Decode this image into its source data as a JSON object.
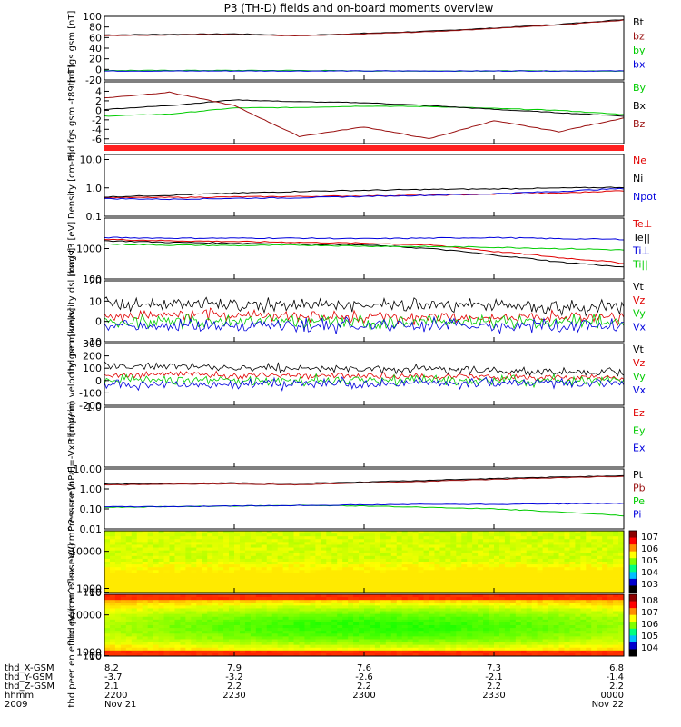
{
  "title": "P3 (TH-D) fields and on-board moments overview",
  "time": {
    "start": "2009-11-21 22:00",
    "end": "2009-11-22 00:00",
    "ticks": [
      "2200",
      "2230",
      "2300",
      "2330",
      "0000"
    ],
    "date_left": "Nov 21",
    "date_right": "Nov 22",
    "year": "2009"
  },
  "ephemeris": {
    "labels": [
      "thd_X-GSM",
      "thd_Y-GSM",
      "thd_Z-GSM",
      "hhmm",
      "2009"
    ],
    "rows": [
      [
        "8.2",
        "7.9",
        "7.6",
        "7.3",
        "6.8"
      ],
      [
        "-3.7",
        "-3.2",
        "-2.6",
        "-2.1",
        "-1.4"
      ],
      [
        "2.1",
        "2.2",
        "2.2",
        "2.2",
        "2.2"
      ]
    ]
  },
  "colors": {
    "black": "#000000",
    "red": "#e00000",
    "green": "#00cc00",
    "blue": "#0000dd",
    "darkred": "#9a1010",
    "flag": "#ff2020"
  },
  "chart_data": [
    {
      "type": "line",
      "id": "fgs",
      "ylabel": "thd fgs gsm [nT]",
      "ylim": [
        -20,
        100
      ],
      "yticks": [
        "100",
        "80",
        "60",
        "40",
        "20",
        "0",
        "-20"
      ],
      "series": [
        {
          "name": "Bt",
          "color": "#000000",
          "values": [
            65,
            66,
            67,
            64,
            68,
            72,
            78,
            85,
            94
          ]
        },
        {
          "name": "bz",
          "color": "#9a1010",
          "values": [
            64,
            65,
            66,
            63,
            67,
            71,
            77,
            84,
            93
          ]
        },
        {
          "name": "by",
          "color": "#00cc00",
          "values": [
            -2,
            -2,
            -2,
            -2,
            -3,
            -3,
            -3,
            -3,
            -3
          ]
        },
        {
          "name": "bx",
          "color": "#0000dd",
          "values": [
            -3,
            -3,
            -3,
            -3,
            -3,
            -3,
            -3,
            -3,
            -3
          ]
        }
      ]
    },
    {
      "type": "line",
      "id": "fgs_dsl",
      "ylabel": "thd fgs gsm -t89 [nT]",
      "ylim": [
        -7,
        6
      ],
      "yticks": [
        "4",
        "2",
        "0",
        "-2",
        "-4",
        "-6"
      ],
      "series": [
        {
          "name": "By",
          "color": "#00cc00",
          "values": [
            -1.2,
            -0.8,
            0.5,
            0.6,
            0.9,
            0.8,
            0.4,
            0.0,
            -0.9
          ]
        },
        {
          "name": "Bx",
          "color": "#000000",
          "values": [
            0.2,
            1.0,
            2.2,
            1.8,
            1.6,
            1.0,
            0.2,
            -0.5,
            -1.2
          ]
        },
        {
          "name": "Bz",
          "color": "#9a1010",
          "values": [
            2.6,
            3.8,
            1.0,
            -5.5,
            -3.5,
            -6.0,
            -2.2,
            -4.5,
            -1.6
          ]
        }
      ]
    },
    {
      "type": "line",
      "id": "density",
      "log": true,
      "ylabel": "Density [cm-3]",
      "ylim": [
        0.1,
        15
      ],
      "yticks": [
        "10.0",
        "1.0",
        "0.1"
      ],
      "series": [
        {
          "name": "Ne",
          "color": "#e00000",
          "values": [
            0.45,
            0.46,
            0.48,
            0.5,
            0.52,
            0.55,
            0.6,
            0.65,
            0.8
          ]
        },
        {
          "name": "Ni",
          "color": "#000000",
          "values": [
            0.48,
            0.55,
            0.65,
            0.75,
            0.82,
            0.88,
            0.92,
            0.98,
            1.05
          ]
        },
        {
          "name": "Npot",
          "color": "#0000dd",
          "values": [
            0.42,
            0.4,
            0.43,
            0.45,
            0.5,
            0.55,
            0.62,
            0.75,
            0.95
          ]
        }
      ]
    },
    {
      "type": "line",
      "id": "temp",
      "log": true,
      "ylabel": "mag t3 [eV]",
      "ylim": [
        100,
        10000
      ],
      "yticks": [
        "1000",
        "100"
      ],
      "series": [
        {
          "name": "Te⊥",
          "color": "#e00000",
          "values": [
            2000,
            1800,
            1700,
            1600,
            1500,
            1300,
            800,
            500,
            330
          ]
        },
        {
          "name": "Te||",
          "color": "#000000",
          "values": [
            1800,
            1600,
            1500,
            1400,
            1300,
            1000,
            600,
            360,
            240
          ]
        },
        {
          "name": "Ti⊥",
          "color": "#0000dd",
          "values": [
            2300,
            2200,
            2200,
            2200,
            2100,
            2200,
            2300,
            2100,
            2000
          ]
        },
        {
          "name": "Ti||",
          "color": "#00cc00",
          "values": [
            1400,
            1300,
            1250,
            1300,
            1200,
            1150,
            1100,
            1000,
            900
          ]
        }
      ]
    },
    {
      "type": "line",
      "id": "vel_dsl",
      "noisy": true,
      "ylabel": "thd peim velocity dsl [km/s]",
      "ylim": [
        -10,
        20
      ],
      "yticks": [
        "20",
        "10",
        "0",
        "-10"
      ],
      "series": [
        {
          "name": "Vt",
          "color": "#000000",
          "values": [
            9,
            9,
            8,
            8,
            8,
            8,
            8,
            7,
            7
          ],
          "amp": 5
        },
        {
          "name": "Vz",
          "color": "#e00000",
          "values": [
            3,
            3,
            3,
            3,
            2,
            2,
            2,
            2,
            2
          ],
          "amp": 4
        },
        {
          "name": "Vy",
          "color": "#00cc00",
          "values": [
            0,
            0,
            0,
            0,
            0,
            0,
            0,
            0,
            0
          ],
          "amp": 5
        },
        {
          "name": "Vx",
          "color": "#0000dd",
          "values": [
            -2,
            -2,
            -2,
            -2,
            -2,
            -2,
            -2,
            -2,
            -2
          ],
          "amp": 5
        }
      ]
    },
    {
      "type": "line",
      "id": "vel_gsm",
      "noisy": true,
      "ylabel": "thd peim velocity gsm [km/s]",
      "ylim": [
        -200,
        300
      ],
      "yticks": [
        "300",
        "200",
        "100",
        "0",
        "-100",
        "-200"
      ],
      "series": [
        {
          "name": "Vt",
          "color": "#000000",
          "values": [
            120,
            115,
            110,
            100,
            95,
            90,
            80,
            70,
            60
          ],
          "amp": 50
        },
        {
          "name": "Vz",
          "color": "#e00000",
          "values": [
            50,
            50,
            45,
            40,
            40,
            35,
            30,
            25,
            20
          ],
          "amp": 40
        },
        {
          "name": "Vy",
          "color": "#00cc00",
          "values": [
            0,
            0,
            0,
            0,
            0,
            0,
            0,
            0,
            0
          ],
          "amp": 60
        },
        {
          "name": "Vx",
          "color": "#0000dd",
          "values": [
            -30,
            -30,
            -30,
            -25,
            -25,
            -25,
            -20,
            -20,
            -20
          ],
          "amp": 60
        }
      ]
    },
    {
      "type": "line",
      "id": "efield",
      "empty": true,
      "ylabel": "E=-VxB [mV/m]",
      "ylim": [
        -1,
        1
      ],
      "yticks": [
        "1.0"
      ],
      "series": [
        {
          "name": "Ez",
          "color": "#e00000",
          "values": []
        },
        {
          "name": "Ey",
          "color": "#00cc00",
          "values": []
        },
        {
          "name": "Ex",
          "color": "#0000dd",
          "values": []
        }
      ]
    },
    {
      "type": "line",
      "id": "pressure",
      "log": true,
      "ylabel": "Pressure [nPa]",
      "ylim": [
        0.01,
        10
      ],
      "yticks": [
        "10.00",
        "1.00",
        "0.10",
        "0.01"
      ],
      "series": [
        {
          "name": "Pt",
          "color": "#000000",
          "values": [
            1.8,
            1.9,
            2.0,
            1.9,
            2.2,
            2.7,
            3.3,
            3.9,
            4.6
          ]
        },
        {
          "name": "Pb",
          "color": "#9a1010",
          "values": [
            1.6,
            1.7,
            1.8,
            1.6,
            2.0,
            2.4,
            3.0,
            3.6,
            4.3
          ]
        },
        {
          "name": "Pe",
          "color": "#00cc00",
          "values": [
            0.12,
            0.13,
            0.14,
            0.15,
            0.14,
            0.12,
            0.1,
            0.07,
            0.045
          ]
        },
        {
          "name": "Pi",
          "color": "#0000dd",
          "values": [
            0.13,
            0.13,
            0.14,
            0.15,
            0.16,
            0.17,
            0.17,
            0.18,
            0.19
          ]
        }
      ]
    },
    {
      "type": "heatmap",
      "id": "peir",
      "ylabel": "thd peir en eflux eV/(cm^2-s-sr-eV)",
      "ylim": [
        10,
        15000
      ],
      "yticks": [
        "10000",
        "1000",
        "100",
        "10"
      ],
      "colorbar": [
        "10^7",
        "10^6",
        "10^5",
        "10^4",
        "10^3"
      ]
    },
    {
      "type": "heatmap",
      "id": "peer",
      "ylabel": "thd peer en eflux eV/(cm^2-s-sr-eV)",
      "ylim": [
        10,
        15000
      ],
      "yticks": [
        "10000",
        "1000",
        "100",
        "10"
      ],
      "colorbar": [
        "10^8",
        "10^7",
        "10^6",
        "10^5",
        "10^4"
      ]
    }
  ]
}
